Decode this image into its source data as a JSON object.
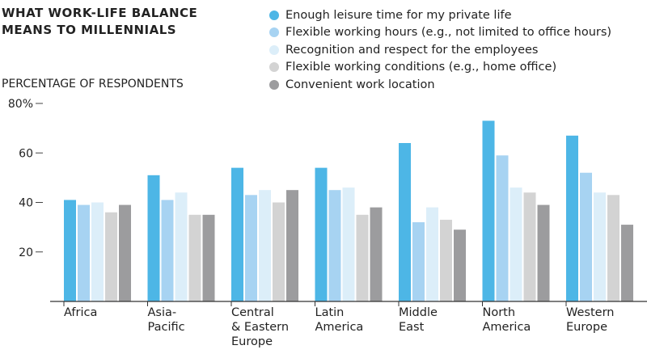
{
  "title_lines": [
    "WHAT WORK-LIFE BALANCE",
    "MEANS TO MILLENNIALS"
  ],
  "y_axis_title": "PERCENTAGE OF RESPONDENTS",
  "legend": [
    {
      "label": "Enough leisure time for my private life",
      "color": "#4db6e6"
    },
    {
      "label": "Flexible working hours (e.g., not limited to office hours)",
      "color": "#a7d3f2"
    },
    {
      "label": "Recognition and respect for the employees",
      "color": "#dceef9"
    },
    {
      "label": "Flexible working conditions (e.g., home office)",
      "color": "#d3d3d3"
    },
    {
      "label": "Convenient work location",
      "color": "#9c9c9e"
    }
  ],
  "chart_data": {
    "type": "bar",
    "categories": [
      "Africa",
      "Asia-\nPacific",
      "Central\n& Eastern\nEurope",
      "Latin\nAmerica",
      "Middle\nEast",
      "North\nAmerica",
      "Western\nEurope"
    ],
    "series": [
      {
        "name": "Enough leisure time for my private life",
        "color": "#4db6e6",
        "values": [
          41,
          51,
          54,
          54,
          64,
          73,
          67
        ]
      },
      {
        "name": "Flexible working hours (e.g., not limited to office hours)",
        "color": "#a7d3f2",
        "values": [
          39,
          41,
          43,
          45,
          32,
          59,
          52
        ]
      },
      {
        "name": "Recognition and respect for the employees",
        "color": "#dceef9",
        "values": [
          40,
          44,
          45,
          46,
          38,
          46,
          44
        ]
      },
      {
        "name": "Flexible working conditions (e.g., home office)",
        "color": "#d3d3d3",
        "values": [
          36,
          35,
          40,
          35,
          33,
          44,
          43
        ]
      },
      {
        "name": "Convenient work location",
        "color": "#9c9c9e",
        "values": [
          39,
          35,
          45,
          38,
          29,
          39,
          31
        ]
      }
    ],
    "ylabel": "PERCENTAGE OF RESPONDENTS",
    "ylim": [
      0,
      80
    ],
    "yticks": [
      20,
      40,
      60,
      80
    ],
    "ytick_labels": [
      "20",
      "40",
      "60",
      "80%"
    ],
    "grid": false,
    "legend_position": "top-right"
  }
}
